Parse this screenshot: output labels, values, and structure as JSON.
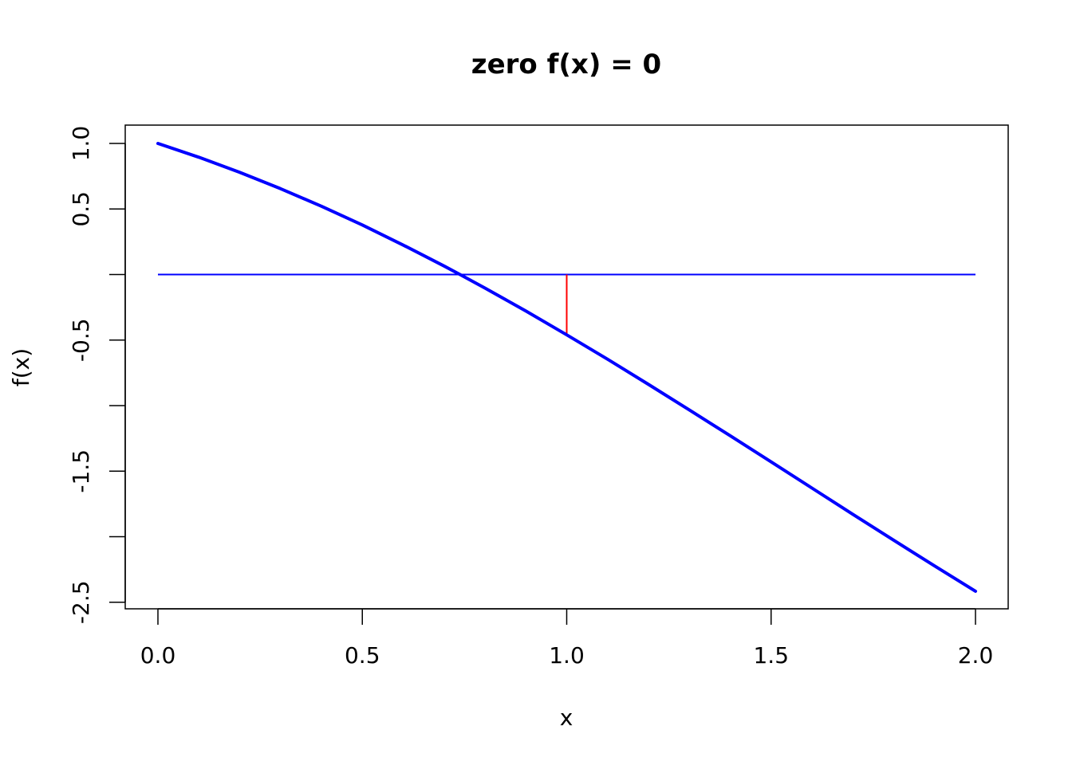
{
  "chart_data": {
    "type": "line",
    "title": "zero f(x) = 0",
    "xlabel": "x",
    "ylabel": "f(x)",
    "xlim": [
      -0.08,
      2.08
    ],
    "ylim": [
      -2.55,
      1.14
    ],
    "x_ticks": [
      0.0,
      0.5,
      1.0,
      1.5,
      2.0
    ],
    "x_tick_labels": [
      "0.0",
      "0.5",
      "1.0",
      "1.5",
      "2.0"
    ],
    "y_ticks": [
      1.0,
      0.5,
      0.0,
      -0.5,
      -1.0,
      -1.5,
      -2.0,
      -2.5
    ],
    "y_tick_labels": [
      "1.0",
      "0.5",
      "",
      "-0.5",
      "",
      "-1.5",
      "",
      "-2.5"
    ],
    "grid": false,
    "curve": {
      "color": "#0000ff",
      "x": [
        0.0,
        0.1,
        0.2,
        0.3,
        0.4,
        0.5,
        0.6,
        0.7,
        0.739,
        0.8,
        0.9,
        1.0,
        1.1,
        1.2,
        1.3,
        1.4,
        1.5,
        1.6,
        1.7,
        1.8,
        1.9,
        2.0
      ],
      "y": [
        1.0,
        0.895,
        0.78,
        0.655,
        0.521,
        0.378,
        0.225,
        0.065,
        0.0,
        -0.103,
        -0.278,
        -0.46,
        -0.646,
        -0.838,
        -1.033,
        -1.23,
        -1.429,
        -1.629,
        -1.829,
        -2.027,
        -2.223,
        -2.416
      ]
    },
    "zero_line": {
      "y": 0.0,
      "x_from": 0.0,
      "x_to": 2.0,
      "color": "#0000ff"
    },
    "residual_segment": {
      "x": 1.0,
      "y_from": 0.0,
      "y_to": -0.46,
      "color": "#ff0000"
    }
  }
}
